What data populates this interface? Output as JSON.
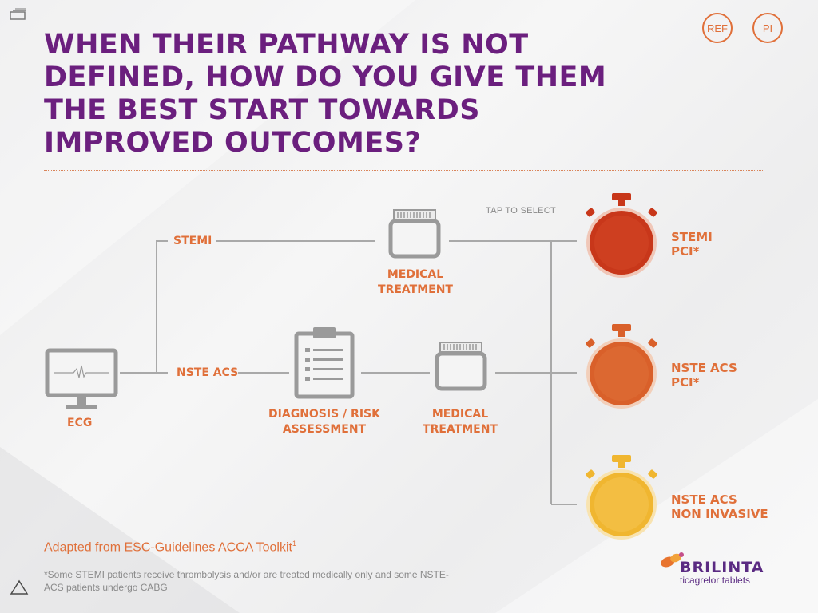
{
  "title": "When their pathway is not defined, how do you give them the best start towards improved outcomes?",
  "header_buttons": {
    "ref": "REF",
    "pi": "PI"
  },
  "pathway": {
    "stemi": "STEMI",
    "nste_acs": "NSTE ACS",
    "ecg": "ECG",
    "medical_treatment_top": [
      "MEDICAL",
      "TREATMENT"
    ],
    "diagnosis": [
      "DIAGNOSIS / RISK",
      "ASSESSMENT"
    ],
    "medical_treatment_bottom": [
      "MEDICAL",
      "TREATMENT"
    ]
  },
  "tap_to_select": "TAP TO SELECT",
  "timers": [
    {
      "line1": "STEMI",
      "line2": "PCI*",
      "color": "#c8371a"
    },
    {
      "line1": "NSTE ACS",
      "line2": "PCI*",
      "color": "#d9602a"
    },
    {
      "line1": "NSTE ACS",
      "line2": "NON INVASIVE",
      "color": "#f0b630"
    }
  ],
  "adapted": {
    "text": "Adapted from ESC-Guidelines ACCA Toolkit",
    "sup": "1"
  },
  "footnote": "*Some STEMI patients receive thrombolysis and/or are treated medically only and some NSTE-ACS patients undergo CABG",
  "logo": {
    "brand": "BRILINTA",
    "tagline": "ticagrelor tablets"
  },
  "colors": {
    "title": "#6b1f7e",
    "accent": "#e0703a",
    "icon_gray": "#9a9a9a",
    "brand": "#5a2a82"
  },
  "icons": [
    "menu-icon",
    "ecg-monitor-icon",
    "medicine-jar-icon",
    "clipboard-icon",
    "stopwatch-icon",
    "home-triangle-icon"
  ]
}
